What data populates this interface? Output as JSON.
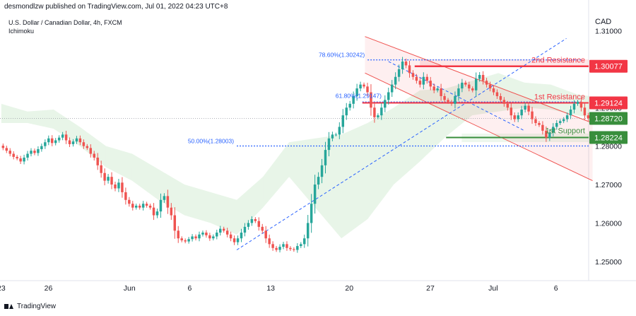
{
  "header": {
    "published": "desmondlzw published on TradingView.com, Jul 01, 2022 04:23 UTC+8",
    "symbol": "U.S. Dollar / Canadian Dollar, 4h, FXCM",
    "indicator": "Ichimoku"
  },
  "footer": {
    "brand": "TradingView"
  },
  "colors": {
    "up": "#26a69a",
    "down": "#ef5350",
    "resistance": "#f23645",
    "support": "#388e3c",
    "fib": "#2962ff",
    "price": "#388e3c"
  },
  "chart_data": {
    "type": "candlestick",
    "y_axis_unit": "CAD",
    "ylim": [
      1.245,
      1.318
    ],
    "y_ticks": [
      1.31,
      1.3,
      1.29,
      1.28,
      1.27,
      1.26,
      1.25
    ],
    "y_tick_labels": [
      "1.31000",
      "1.30000",
      "1.29000",
      "1.28000",
      "1.27000",
      "1.26000",
      "1.25000"
    ],
    "x_tick_labels": [
      "23",
      "26",
      "Jun",
      "6",
      "13",
      "20",
      "27",
      "Jul",
      "6"
    ],
    "x_tick_bars": [
      0,
      18,
      49,
      72,
      103,
      133,
      164,
      188,
      212
    ],
    "total_bars": 225,
    "closes": [
      1.2795,
      1.2788,
      1.278,
      1.2772,
      1.2768,
      1.276,
      1.277,
      1.278,
      1.2788,
      1.2782,
      1.2792,
      1.28,
      1.281,
      1.282,
      1.2808,
      1.2815,
      1.2822,
      1.283,
      1.2815,
      1.2805,
      1.2812,
      1.282,
      1.281,
      1.28,
      1.2795,
      1.278,
      1.277,
      1.275,
      1.273,
      1.271,
      1.272,
      1.27,
      1.269,
      1.2705,
      1.268,
      1.266,
      1.265,
      1.264,
      1.2645,
      1.264,
      1.265,
      1.2645,
      1.264,
      1.262,
      1.263,
      1.266,
      1.267,
      1.264,
      1.262,
      1.258,
      1.256,
      1.2555,
      1.2552,
      1.2558,
      1.2565,
      1.256,
      1.257,
      1.2575,
      1.2568,
      1.256,
      1.2565,
      1.2575,
      1.2585,
      1.258,
      1.257,
      1.256,
      1.255,
      1.256,
      1.2575,
      1.259,
      1.26,
      1.261,
      1.2605,
      1.259,
      1.258,
      1.256,
      1.2545,
      1.2535,
      1.253,
      1.2538,
      1.2545,
      1.2535,
      1.2532,
      1.253,
      1.254,
      1.2545,
      1.256,
      1.26,
      1.265,
      1.27,
      1.272,
      1.275,
      1.279,
      1.282,
      1.283,
      1.283,
      1.285,
      1.288,
      1.29,
      1.291,
      1.293,
      1.295,
      1.296,
      1.2955,
      1.294,
      1.29,
      1.2875,
      1.288,
      1.29,
      1.292,
      1.294,
      1.296,
      1.298,
      1.3,
      1.302,
      1.301,
      1.299,
      1.298,
      1.297,
      1.296,
      1.298,
      1.297,
      1.2955,
      1.2945,
      1.295,
      1.293,
      1.292,
      1.2915,
      1.291,
      1.293,
      1.295,
      1.2965,
      1.296,
      1.295,
      1.2945,
      1.2975,
      1.2985,
      1.297,
      1.296,
      1.295,
      1.294,
      1.293,
      1.292,
      1.291,
      1.29,
      1.288,
      1.287,
      1.288,
      1.2895,
      1.2905,
      1.289,
      1.287,
      1.286,
      1.2855,
      1.284,
      1.2822,
      1.2835,
      1.285,
      1.286,
      1.2865,
      1.287,
      1.288,
      1.2895,
      1.291,
      1.2915,
      1.29,
      1.288,
      1.2872
    ],
    "ichimoku_cloud": {
      "x_bars": [
        0,
        10,
        20,
        30,
        40,
        50,
        60,
        70,
        80,
        90,
        100,
        110,
        120,
        130,
        140,
        150,
        160,
        170,
        180,
        190,
        200,
        210,
        220,
        225
      ],
      "span_a": [
        1.291,
        1.289,
        1.2895,
        1.285,
        1.28,
        1.278,
        1.274,
        1.27,
        1.268,
        1.266,
        1.272,
        1.281,
        1.282,
        1.283,
        1.286,
        1.29,
        1.2945,
        1.295,
        1.297,
        1.299,
        1.2965,
        1.296,
        1.2935,
        1.293
      ],
      "span_b": [
        1.286,
        1.286,
        1.2845,
        1.28,
        1.2745,
        1.271,
        1.266,
        1.262,
        1.26,
        1.257,
        1.264,
        1.272,
        1.264,
        1.256,
        1.261,
        1.27,
        1.276,
        1.2825,
        1.288,
        1.289,
        1.29,
        1.2895,
        1.288,
        1.2875
      ]
    },
    "levels": [
      {
        "name": "2nd Resistance",
        "value": 1.30077,
        "label": "1.30077",
        "kind": "resistance"
      },
      {
        "name": "1st Resistance",
        "value": 1.29124,
        "label": "1.29124",
        "kind": "resistance"
      },
      {
        "name": "last price",
        "value": 1.2872,
        "label": "1.28720",
        "kind": "price"
      },
      {
        "name": "1st Support",
        "value": 1.28224,
        "label": "1.28224",
        "kind": "support"
      }
    ],
    "fibs": [
      {
        "label": "78.60%(1.30242)",
        "value": 1.30242,
        "x_from": 140,
        "x_to": 222
      },
      {
        "label": "61.80%(1.29147)",
        "value": 1.29147,
        "x_from": 138,
        "x_to": 222
      },
      {
        "label": "50.00%(1.28003)",
        "value": 1.28003,
        "x_from": 90,
        "x_to": 225
      }
    ],
    "annotations": {
      "level_texts": [
        "2nd Resistance",
        "1st Resistance",
        "1st Support"
      ],
      "channel": {
        "x_start": 139,
        "upper_start": 1.3085,
        "upper_end": 1.286,
        "lower_start": 1.299,
        "lower_end": 1.271,
        "x_end": 226
      },
      "trendline": {
        "x_from": 90,
        "y_from": 1.253,
        "x_to": 216,
        "y_to": 1.308
      },
      "diag": {
        "x_from": 148,
        "y_from": 1.302,
        "x_to": 200,
        "y_to": 1.284
      }
    }
  }
}
